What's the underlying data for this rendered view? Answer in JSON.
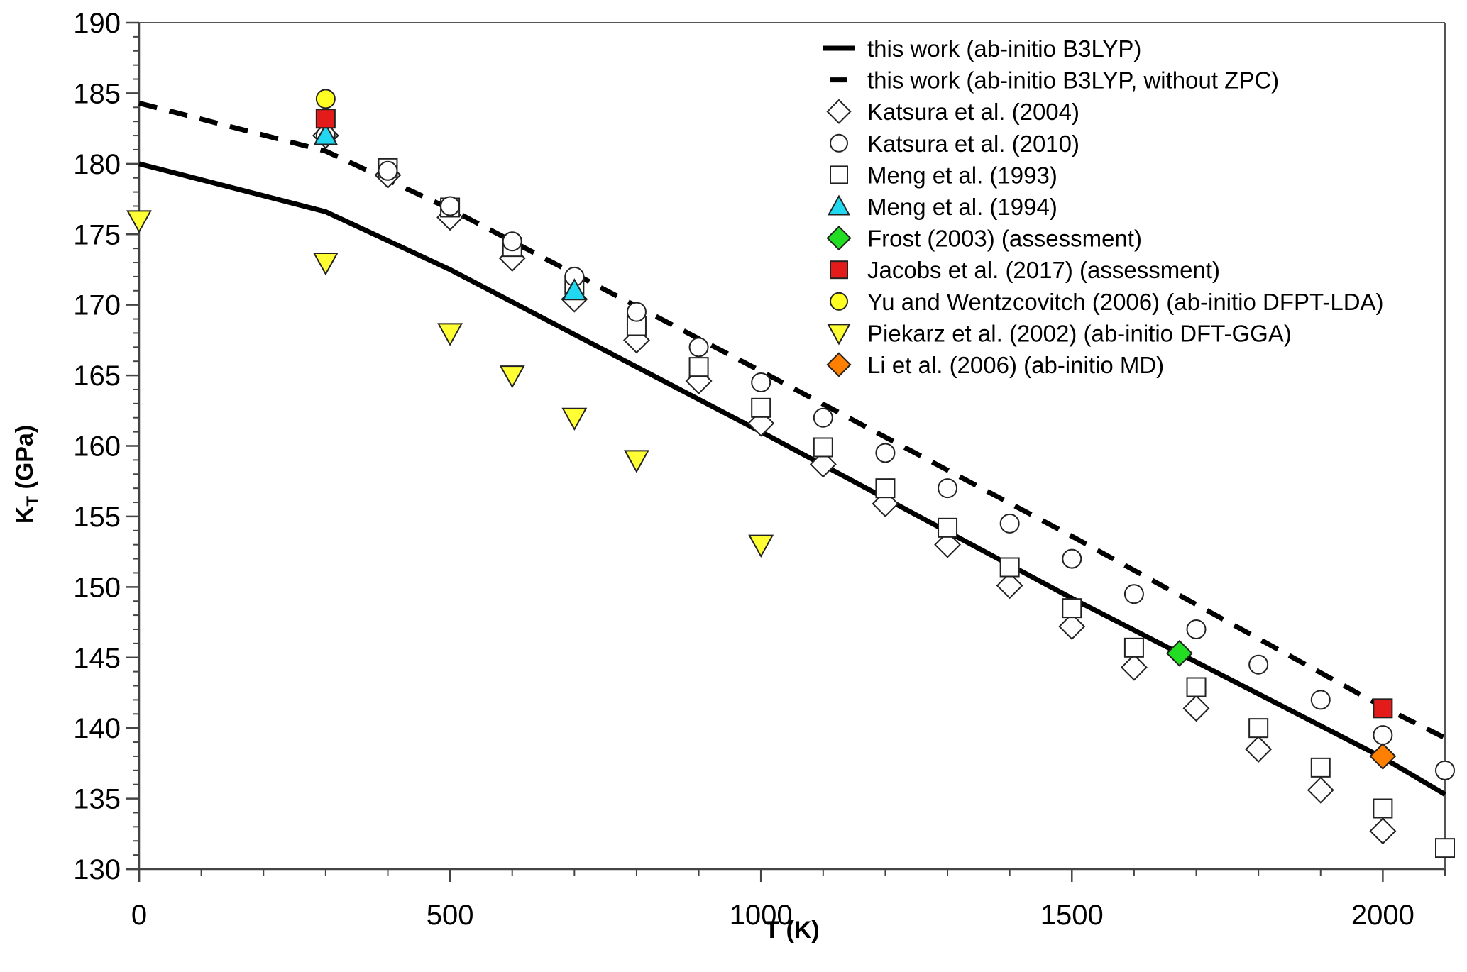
{
  "chart_data": {
    "type": "scatter",
    "title": "",
    "xlabel": "T (K)",
    "ylabel_main": "K",
    "ylabel_sub": "T",
    "ylabel_rest": " (GPa)",
    "xlim": [
      0,
      2100
    ],
    "ylim": [
      130,
      190
    ],
    "x_ticks": [
      0,
      500,
      1000,
      1500,
      2000
    ],
    "x_minor_step": 100,
    "y_ticks": [
      130,
      135,
      140,
      145,
      150,
      155,
      160,
      165,
      170,
      175,
      180,
      185,
      190
    ],
    "y_minor_step": 1,
    "grid": false,
    "legend_position": "top-right",
    "series": [
      {
        "name": "this work (ab-initio B3LYP)",
        "kind": "line",
        "style": "solid",
        "color": "#000000",
        "x": [
          0,
          300,
          500,
          1000,
          1500,
          2000,
          2100
        ],
        "y": [
          180.0,
          176.6,
          172.5,
          161.0,
          149.2,
          137.9,
          135.3
        ]
      },
      {
        "name": "this work (ab-initio B3LYP, without ZPC)",
        "kind": "line",
        "style": "dashed",
        "color": "#000000",
        "x": [
          0,
          300,
          500,
          1000,
          1500,
          2000,
          2100
        ],
        "y": [
          184.3,
          180.9,
          176.8,
          165.3,
          153.6,
          141.5,
          139.3
        ]
      },
      {
        "name": "Katsura et al. (2004)",
        "kind": "marker",
        "marker": "diamond",
        "fill": "#ffffff",
        "x": [
          300,
          400,
          500,
          600,
          700,
          800,
          900,
          1000,
          1100,
          1200,
          1300,
          1400,
          1500,
          1600,
          1700,
          1800,
          1900,
          2000
        ],
        "y": [
          182.0,
          179.2,
          176.2,
          173.3,
          170.4,
          167.5,
          164.6,
          161.6,
          158.7,
          155.9,
          153.0,
          150.1,
          147.2,
          144.3,
          141.4,
          138.5,
          135.6,
          132.7
        ]
      },
      {
        "name": "Katsura et al. (2010)",
        "kind": "marker",
        "marker": "circle",
        "fill": "#ffffff",
        "x": [
          300,
          400,
          500,
          600,
          700,
          800,
          900,
          1000,
          1100,
          1200,
          1300,
          1400,
          1500,
          1600,
          1700,
          1800,
          1900,
          2000,
          2100
        ],
        "y": [
          182.0,
          179.5,
          177.0,
          174.5,
          172.0,
          169.5,
          167.0,
          164.5,
          162.0,
          159.5,
          157.0,
          154.5,
          152.0,
          149.5,
          147.0,
          144.5,
          142.0,
          139.5,
          137.0
        ]
      },
      {
        "name": "Meng et al. (1993)",
        "kind": "marker",
        "marker": "square",
        "fill": "#ffffff",
        "x": [
          400,
          500,
          600,
          700,
          800,
          900,
          1000,
          1100,
          1200,
          1300,
          1400,
          1500,
          1600,
          1700,
          1800,
          1900,
          2000,
          2100
        ],
        "y": [
          179.7,
          176.9,
          174.1,
          171.4,
          168.5,
          165.6,
          162.7,
          159.9,
          157.0,
          154.2,
          151.4,
          148.5,
          145.7,
          142.9,
          140.0,
          137.2,
          134.3,
          131.5
        ]
      },
      {
        "name": "Meng et al. (1994)",
        "kind": "marker",
        "marker": "triangle-up",
        "fill": "#22d8f0",
        "x": [
          300,
          700
        ],
        "y": [
          182.0,
          171.0
        ]
      },
      {
        "name": "Frost (2003) (assessment)",
        "kind": "marker",
        "marker": "diamond",
        "fill": "#22dd22",
        "x": [
          1673
        ],
        "y": [
          145.3
        ]
      },
      {
        "name": "Jacobs et al. (2017) (assessment)",
        "kind": "marker",
        "marker": "square",
        "fill": "#e31b1b",
        "x": [
          300,
          2000
        ],
        "y": [
          183.2,
          141.4
        ]
      },
      {
        "name": "Yu and Wentzcovitch (2006) (ab-initio DFPT-LDA)",
        "kind": "marker",
        "marker": "circle",
        "fill": "#ffff22",
        "x": [
          300
        ],
        "y": [
          184.6
        ]
      },
      {
        "name": "Piekarz et al. (2002) (ab-initio DFT-GGA)",
        "kind": "marker",
        "marker": "triangle-down",
        "fill": "#ffff33",
        "x": [
          0,
          300,
          500,
          600,
          700,
          800,
          1000
        ],
        "y": [
          176.0,
          173.0,
          168.0,
          165.0,
          162.0,
          159.0,
          153.0
        ]
      },
      {
        "name": "Li et al. (2006) (ab-initio MD)",
        "kind": "marker",
        "marker": "diamond",
        "fill": "#ff7f00",
        "x": [
          2000
        ],
        "y": [
          138.0
        ]
      }
    ],
    "draw_order": [
      9,
      0,
      1,
      2,
      4,
      3,
      5,
      7,
      8,
      6,
      10
    ]
  }
}
